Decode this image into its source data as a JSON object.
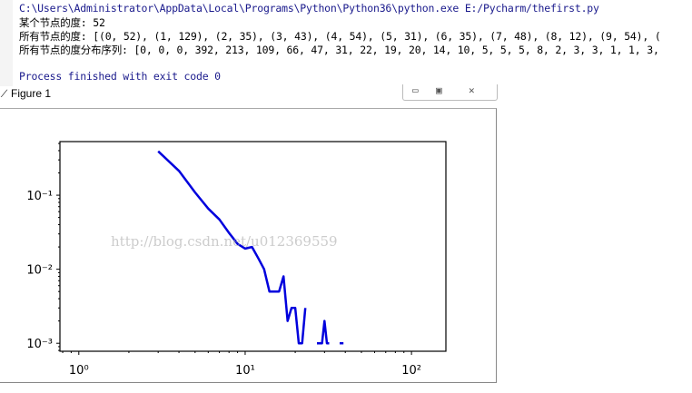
{
  "console": {
    "command": "C:\\Users\\Administrator\\AppData\\Local\\Programs\\Python\\Python36\\python.exe E:/Pycharm/thefirst.py",
    "line1": "某个节点的度: 52",
    "line2": "所有节点的度: [(0, 52), (1, 129), (2, 35), (3, 43), (4, 54), (5, 31), (6, 35), (7, 48), (8, 12), (9, 54), (",
    "line3": "所有节点的度分布序列: [0, 0, 0, 392, 213, 109, 66, 47, 31, 22, 19, 20, 14, 10, 5, 5, 5, 8, 2, 3, 3, 1, 1, 3,",
    "exit": "Process finished with exit code 0"
  },
  "figure": {
    "title": "Figure 1",
    "buttons": {
      "minimize": "▭",
      "maximize": "▣",
      "close": "✕"
    },
    "watermark": "http://blog.csdn.net/u012369559"
  },
  "chart_data": {
    "type": "line",
    "xscale": "log",
    "yscale": "log",
    "xlim": [
      0.77,
      161
    ],
    "ylim": [
      0.00078,
      0.53
    ],
    "xticks": [
      {
        "value": 1,
        "label": "10⁰"
      },
      {
        "value": 10,
        "label": "10¹"
      },
      {
        "value": 100,
        "label": "10²"
      }
    ],
    "yticks": [
      {
        "value": 0.1,
        "label": "10⁻¹"
      },
      {
        "value": 0.01,
        "label": "10⁻²"
      },
      {
        "value": 0.001,
        "label": "10⁻³"
      }
    ],
    "color": "#0000dd",
    "grid": false,
    "x": [
      3,
      4,
      5,
      6,
      7,
      8,
      9,
      10,
      11,
      12,
      13,
      14,
      15,
      16,
      17,
      18,
      19,
      20,
      21,
      22,
      23,
      24,
      25,
      26,
      27,
      28,
      29,
      30,
      31,
      32,
      33,
      34,
      35,
      36,
      37,
      38,
      39
    ],
    "y": [
      0.392,
      0.213,
      0.109,
      0.066,
      0.047,
      0.031,
      0.022,
      0.019,
      0.02,
      0.014,
      0.01,
      0.005,
      0.005,
      0.005,
      0.008,
      0.002,
      0.003,
      0.003,
      0.001,
      0.001,
      0.003,
      0,
      0,
      0,
      0.001,
      0.001,
      0.001,
      0.002,
      0.001,
      0.001,
      0,
      0,
      0,
      0,
      0.001,
      0.001,
      0.001
    ]
  }
}
